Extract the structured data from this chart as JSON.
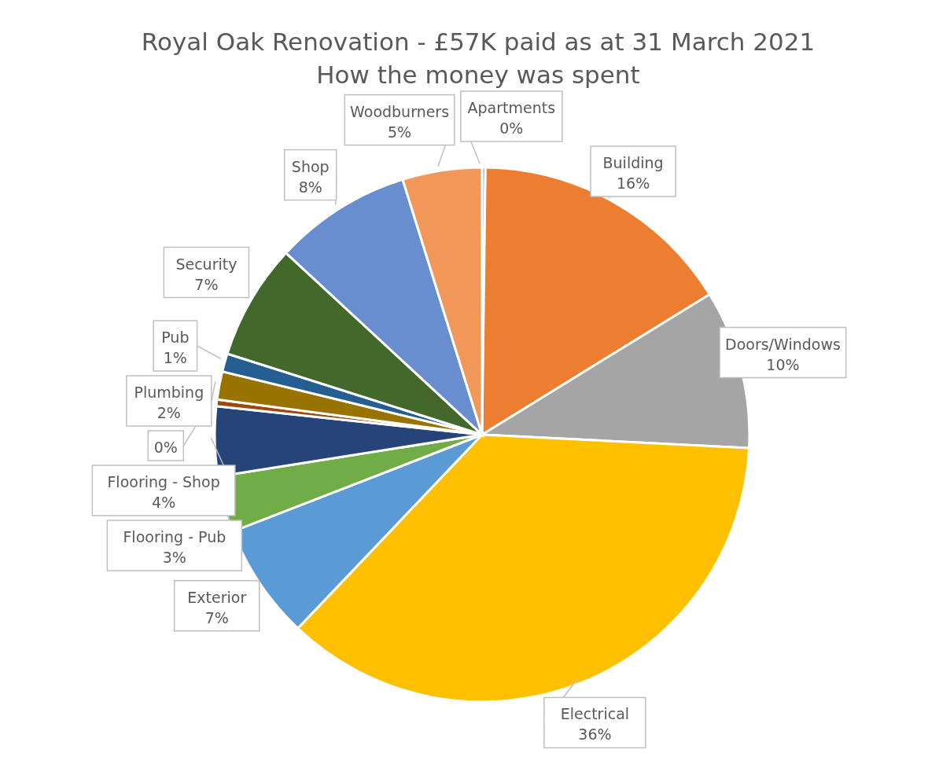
{
  "chart_data": {
    "type": "pie",
    "title": "Royal Oak Renovation - £57K paid as at 31 March 2021",
    "subtitle": "How the money was spent",
    "categories": [
      "Apartments",
      "Building",
      "Doors/Windows",
      "Electrical",
      "Exterior",
      "Flooring - Pub",
      "Flooring - Shop",
      null,
      "Plumbing",
      "Pub",
      "Security",
      "Shop",
      "Woodburners"
    ],
    "values": [
      0.2,
      16,
      9.6,
      36.3,
      7,
      3.4,
      4.2,
      0.4,
      1.7,
      1.1,
      7,
      8.3,
      4.8
    ],
    "value_labels": [
      "0%",
      "16%",
      "10%",
      "36%",
      "7%",
      "3%",
      "4%",
      "0%",
      "2%",
      "1%",
      "7%",
      "8%",
      "5%"
    ],
    "colors": [
      "#4472c4",
      "#ed7d31",
      "#a5a5a5",
      "#ffc000",
      "#5b9bd5",
      "#70ad47",
      "#264478",
      "#9e480e",
      "#997300",
      "#255e91",
      "#43682b",
      "#698ed0",
      "#f1975a"
    ]
  }
}
